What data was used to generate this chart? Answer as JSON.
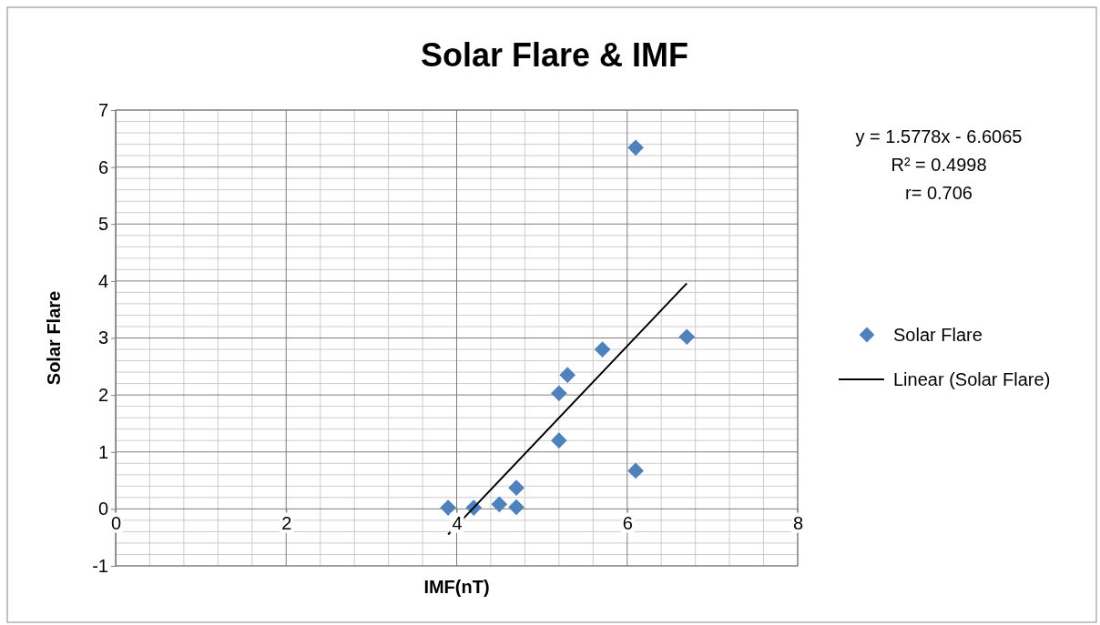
{
  "chart_data": {
    "type": "scatter",
    "title": "Solar Flare & IMF",
    "xlabel": "IMF(nT)",
    "ylabel": "Solar Flare",
    "xlim": [
      0,
      8
    ],
    "ylim": [
      -1,
      7
    ],
    "xticks": [
      0,
      2,
      4,
      6,
      8
    ],
    "yticks": [
      -1,
      0,
      1,
      2,
      3,
      4,
      5,
      6,
      7
    ],
    "grid": true,
    "legend": "right",
    "marker": "diamond",
    "series": [
      {
        "name": "Solar Flare",
        "color": "#4f81bd",
        "x": [
          3.9,
          4.2,
          4.5,
          4.7,
          4.7,
          5.2,
          5.2,
          5.3,
          5.71,
          6.1,
          6.1,
          6.7
        ],
        "values": [
          0.02,
          0.02,
          0.08,
          0.37,
          0.03,
          1.2,
          2.03,
          2.35,
          2.8,
          0.67,
          6.34,
          3.02
        ]
      },
      {
        "name": "Linear (Solar Flare)",
        "type": "line",
        "color": "#000000",
        "marker": "none",
        "x": [
          3.9,
          6.7
        ],
        "values": [
          -0.45,
          3.96
        ]
      }
    ],
    "annotations": [
      "y = 1.5778x - 6.6065",
      "R² = 0.4998",
      "r= 0.706"
    ]
  }
}
